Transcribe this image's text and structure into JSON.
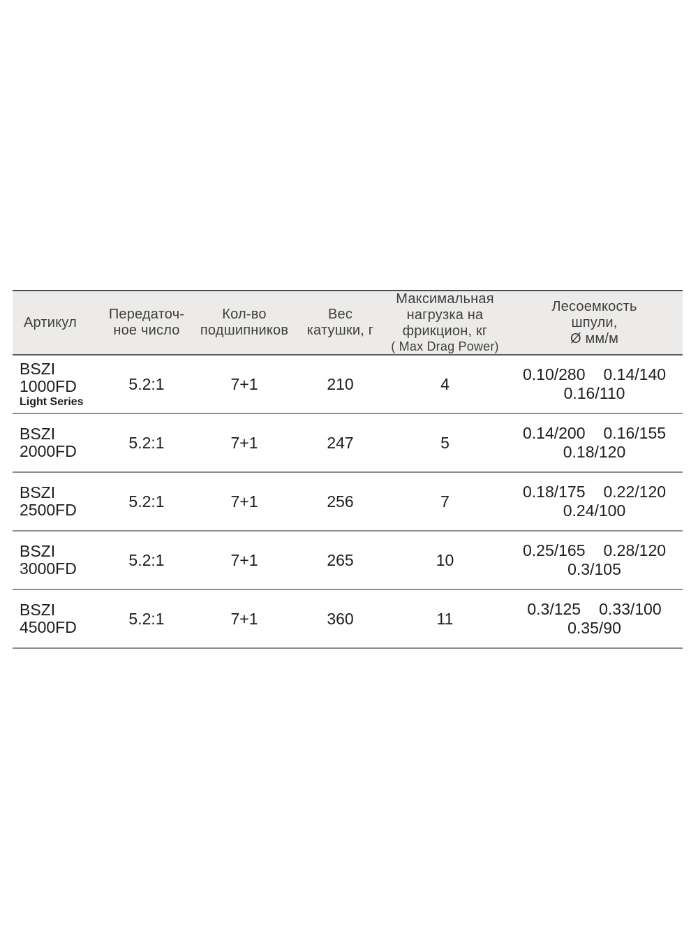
{
  "table": {
    "colors": {
      "header_bg": "#ecebe9",
      "header_text": "#3f3f3f",
      "data_text": "#1d1d1d",
      "outer_line": "#4a4a4a",
      "outer_line2": "#5c5c5c",
      "row_line": "#8d8d8d"
    },
    "headers": [
      {
        "label": "Артикул"
      },
      {
        "label": "Передаточ-\nное число"
      },
      {
        "label": "Кол-во\nподшипников"
      },
      {
        "label": "Вес\nкатушки, г"
      },
      {
        "label": "Максимальная\nнагрузка на\nфрикцион, кг",
        "sublabel": "( Max Drag Power)"
      },
      {
        "label": "Лесоемкость\nшпули,\nØ мм/м"
      }
    ],
    "rows": [
      {
        "article": [
          "BSZI",
          "1000FD"
        ],
        "article_note": "Light Series",
        "gear_ratio": "5.2:1",
        "bearings": "7+1",
        "weight_g": "210",
        "max_drag_kg": "4",
        "line_capacity": [
          "0.10/280",
          "0.14/140",
          "0.16/110"
        ]
      },
      {
        "article": [
          "BSZI",
          "2000FD"
        ],
        "article_note": "",
        "gear_ratio": "5.2:1",
        "bearings": "7+1",
        "weight_g": "247",
        "max_drag_kg": "5",
        "line_capacity": [
          "0.14/200",
          "0.16/155",
          "0.18/120"
        ]
      },
      {
        "article": [
          "BSZI",
          "2500FD"
        ],
        "article_note": "",
        "gear_ratio": "5.2:1",
        "bearings": "7+1",
        "weight_g": "256",
        "max_drag_kg": "7",
        "line_capacity": [
          "0.18/175",
          "0.22/120",
          "0.24/100"
        ]
      },
      {
        "article": [
          "BSZI",
          "3000FD"
        ],
        "article_note": "",
        "gear_ratio": "5.2:1",
        "bearings": "7+1",
        "weight_g": "265",
        "max_drag_kg": "10",
        "line_capacity": [
          "0.25/165",
          "0.28/120",
          "0.3/105"
        ]
      },
      {
        "article": [
          "BSZI",
          "4500FD"
        ],
        "article_note": "",
        "gear_ratio": "5.2:1",
        "bearings": "7+1",
        "weight_g": "360",
        "max_drag_kg": "11",
        "line_capacity": [
          "0.3/125",
          "0.33/100",
          "0.35/90"
        ]
      }
    ]
  }
}
